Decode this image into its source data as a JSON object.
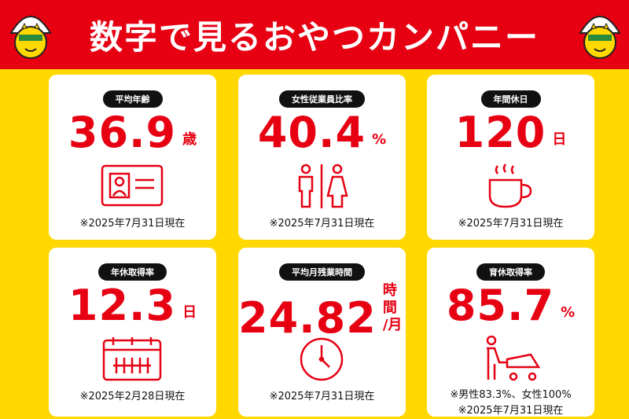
{
  "header": {
    "title": "数字で見るおやつカンパニー"
  },
  "cards": [
    {
      "label": "平均年齢",
      "value": "36.9",
      "unit_lines": [
        "歳"
      ],
      "notes": [
        "※2025年7月31日現在"
      ]
    },
    {
      "label": "女性従業員比率",
      "value": "40.4",
      "unit_lines": [
        "%"
      ],
      "notes": [
        "※2025年7月31日現在"
      ]
    },
    {
      "label": "年間休日",
      "value": "120",
      "unit_lines": [
        "日"
      ],
      "notes": [
        "※2025年7月31日現在"
      ]
    },
    {
      "label": "年休取得率",
      "value": "12.3",
      "unit_lines": [
        "日"
      ],
      "notes": [
        "※2025年2月28日現在"
      ]
    },
    {
      "label": "平均月残業時間",
      "value": "24.82",
      "unit_lines": [
        "時間",
        "/月"
      ],
      "notes": [
        "※2025年7月31日現在"
      ]
    },
    {
      "label": "育休取得率",
      "value": "85.7",
      "unit_lines": [
        "%"
      ],
      "notes": [
        "※男性83.3%、女性100%",
        "※2025年7月31日現在"
      ]
    }
  ]
}
